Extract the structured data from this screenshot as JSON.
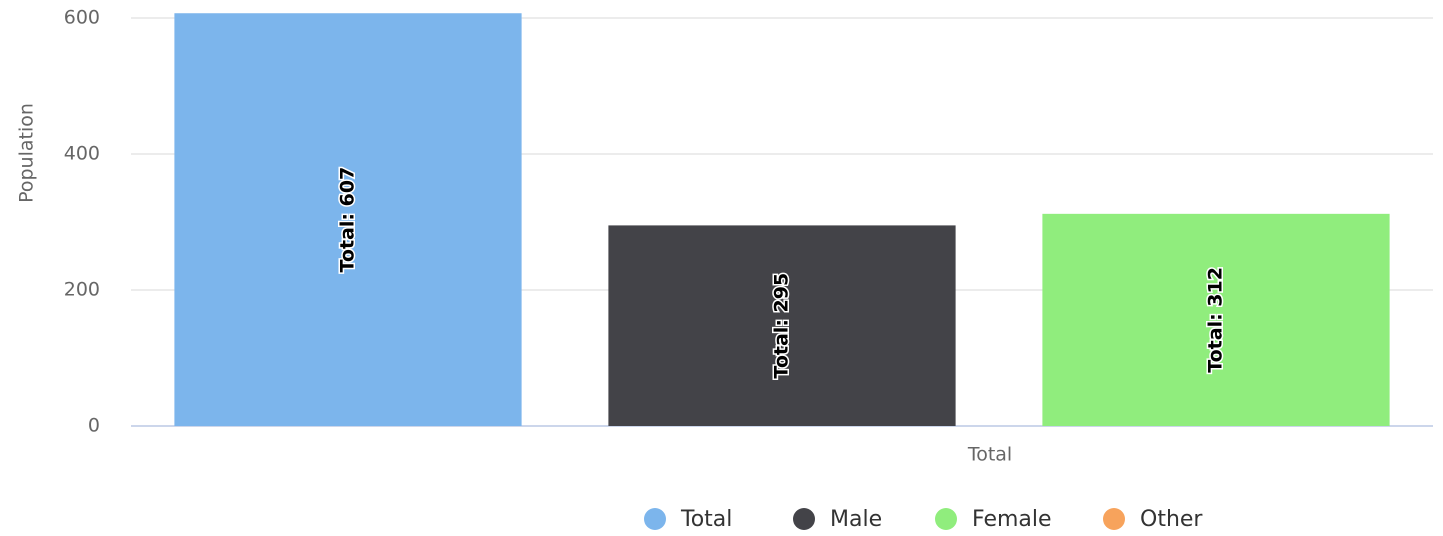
{
  "chart_data": {
    "type": "bar",
    "y_label": "Population",
    "categories": [
      "Total"
    ],
    "series": [
      {
        "name": "Total",
        "color": "#7cb5ec",
        "values": [
          607
        ],
        "value_labels": [
          "Total: 607"
        ]
      },
      {
        "name": "Male",
        "color": "#434348",
        "values": [
          295
        ],
        "value_labels": [
          "Total: 295"
        ]
      },
      {
        "name": "Female",
        "color": "#90ed7d",
        "values": [
          312
        ],
        "value_labels": [
          "Total: 312"
        ]
      },
      {
        "name": "Other",
        "color": "#f7a35c",
        "values": [
          null
        ]
      }
    ],
    "ylim": [
      0,
      600
    ],
    "yticks": [
      0,
      200,
      400,
      600
    ],
    "grid": true
  }
}
